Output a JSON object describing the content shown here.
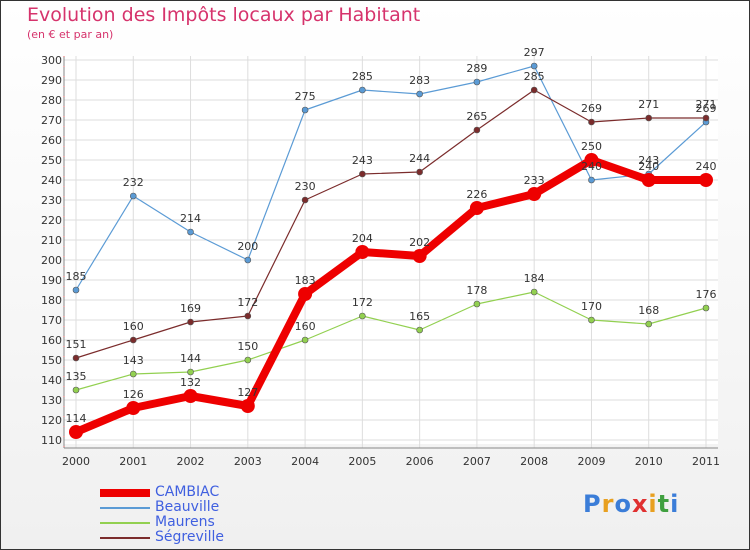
{
  "title": "Evolution des Impôts locaux par Habitant",
  "subtitle": "(en € et par an)",
  "logo": {
    "letters": [
      "P",
      "r",
      "o",
      "x",
      "i",
      "t",
      "i"
    ],
    "colors": [
      "#3b7dd8",
      "#e8a020",
      "#3b7dd8",
      "#e03030",
      "#e8a020",
      "#40a040",
      "#3b7dd8"
    ]
  },
  "chart_data": {
    "type": "line",
    "title": "Evolution des Impôts locaux par Habitant",
    "ylabel": "(en € et par an)",
    "x": [
      "2000",
      "2001",
      "2002",
      "2003",
      "2004",
      "2005",
      "2006",
      "2007",
      "2008",
      "2009",
      "2010",
      "2011"
    ],
    "ylim": [
      110,
      300
    ],
    "yticks": [
      110,
      120,
      130,
      140,
      150,
      160,
      170,
      180,
      190,
      200,
      210,
      220,
      230,
      240,
      250,
      260,
      270,
      280,
      290,
      300
    ],
    "series": [
      {
        "name": "Beauville",
        "color": "#5b9bd5",
        "values": [
          185,
          232,
          214,
          200,
          275,
          285,
          283,
          289,
          297,
          240,
          243,
          269
        ]
      },
      {
        "name": "Maurens",
        "color": "#92d050",
        "values": [
          135,
          143,
          144,
          150,
          160,
          172,
          165,
          178,
          184,
          170,
          168,
          176
        ]
      },
      {
        "name": "Ségreville",
        "color": "#7b2c2c",
        "values": [
          151,
          160,
          169,
          172,
          230,
          243,
          244,
          265,
          285,
          269,
          271,
          271
        ]
      },
      {
        "name": "CAMBIAC",
        "color": "#ee0000",
        "values": [
          114,
          126,
          132,
          127,
          183,
          204,
          202,
          226,
          233,
          250,
          240,
          240
        ]
      }
    ],
    "legend_order": [
      "CAMBIAC",
      "Beauville",
      "Maurens",
      "Ségreville"
    ]
  }
}
